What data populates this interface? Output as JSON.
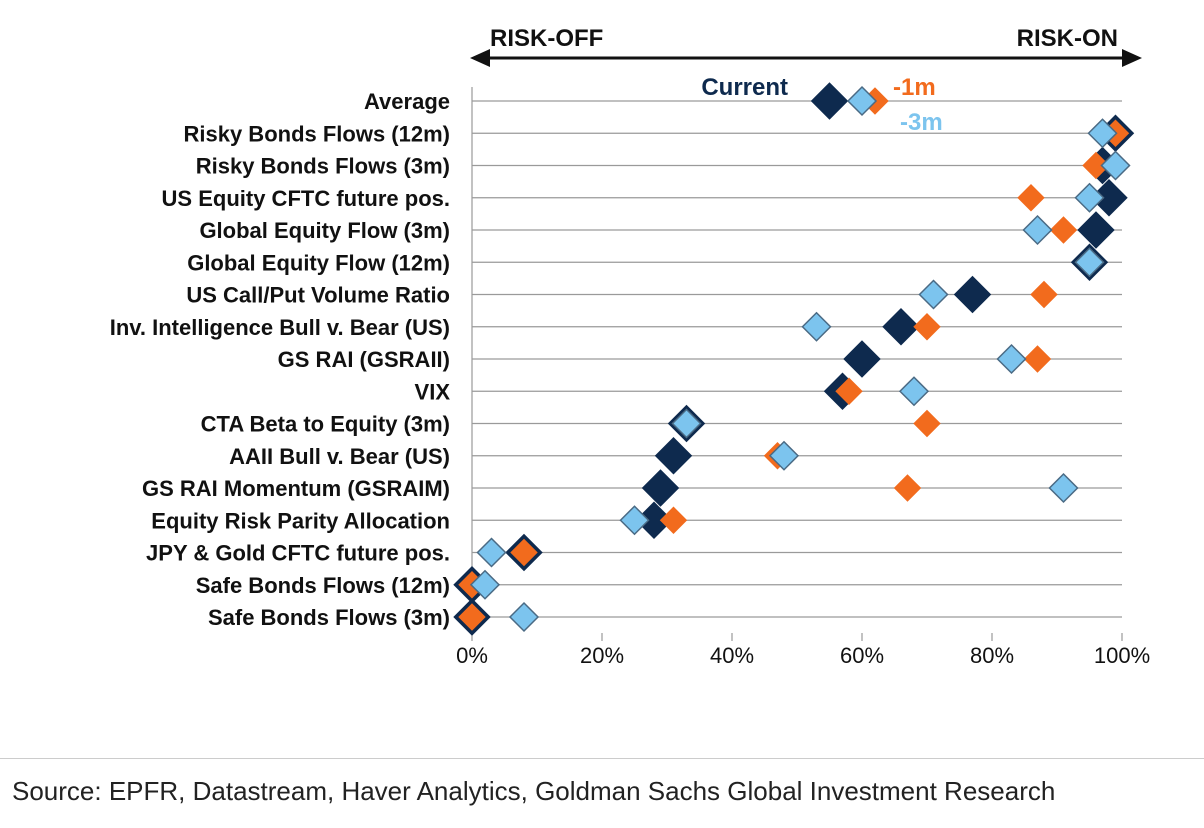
{
  "chart_data": {
    "type": "scatter",
    "title": "",
    "direction_labels": {
      "left": "RISK-OFF",
      "right": "RISK-ON"
    },
    "xlim": [
      0,
      100
    ],
    "x_ticks": [
      0,
      20,
      40,
      60,
      80,
      100
    ],
    "x_tick_labels": [
      "0%",
      "20%",
      "40%",
      "60%",
      "80%",
      "100%"
    ],
    "categories": [
      "Average",
      "Risky Bonds Flows (12m)",
      "Risky Bonds Flows (3m)",
      "US Equity CFTC future pos.",
      "Global Equity Flow (3m)",
      "Global Equity Flow (12m)",
      "US Call/Put Volume Ratio",
      "Inv. Intelligence Bull v. Bear (US)",
      "GS RAI (GSRAII)",
      "VIX",
      "CTA Beta to Equity (3m)",
      "AAII Bull v. Bear (US)",
      "GS RAI Momentum (GSRAIM)",
      "Equity Risk Parity Allocation",
      "JPY & Gold CFTC future pos.",
      "Safe Bonds Flows (12m)",
      "Safe Bonds Flows (3m)"
    ],
    "series": [
      {
        "name": "Current",
        "color": "#0e2a4e",
        "values": [
          55,
          99,
          97,
          98,
          96,
          95,
          77,
          66,
          60,
          57,
          33,
          31,
          29,
          28,
          8,
          0,
          0
        ]
      },
      {
        "name": "-1m",
        "color": "#f26b1d",
        "values": [
          62,
          99,
          96,
          86,
          91,
          95,
          88,
          70,
          87,
          58,
          70,
          47,
          67,
          31,
          8,
          0,
          0
        ]
      },
      {
        "name": "-3m",
        "color": "#7cc4ee",
        "values": [
          60,
          97,
          99,
          95,
          87,
          95,
          71,
          53,
          83,
          68,
          33,
          48,
          91,
          25,
          3,
          2,
          8
        ]
      }
    ],
    "legend": [
      "Current",
      "-1m",
      "-3m"
    ]
  },
  "source": "Source: EPFR, Datastream, Haver Analytics, Goldman Sachs Global Investment Research"
}
